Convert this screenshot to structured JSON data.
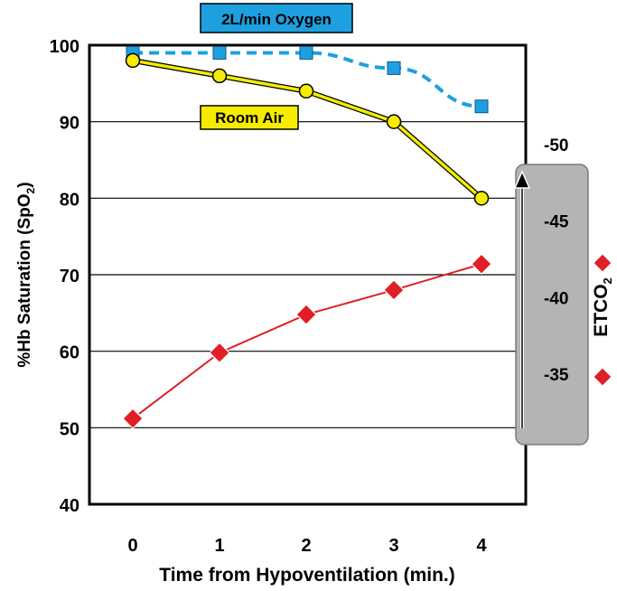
{
  "chart_data": {
    "type": "line",
    "x": [
      0,
      1,
      2,
      3,
      4
    ],
    "xlabel": "Time from Hypoventilation (min.)",
    "ylabel_main": "%Hb Saturation (SpO",
    "ylabel_sub": "2",
    "ylabel_close": ")",
    "ylim": [
      40,
      100
    ],
    "yticks": [
      40,
      50,
      60,
      70,
      80,
      90,
      100
    ],
    "xticks": [
      "0",
      "1",
      "2",
      "3",
      "4"
    ],
    "grid": true,
    "series": [
      {
        "name": "2L/min Oxygen",
        "values": [
          99,
          99,
          99,
          97,
          92
        ],
        "color": "#1ea0e0",
        "marker": "square",
        "style": "dashed"
      },
      {
        "name": "Room Air",
        "values": [
          98,
          96,
          94,
          90,
          80
        ],
        "color": "#f5ec00",
        "marker": "circle",
        "style": "solid"
      },
      {
        "name": "ETCO2",
        "axis": "secondary",
        "values": [
          32.1,
          36.4,
          38.9,
          40.5,
          42.2
        ],
        "color": "#e01e25",
        "marker": "diamond",
        "style": "solid"
      }
    ],
    "secondary_axis": {
      "ylabel_main": "ETCO",
      "ylabel_sub": "2",
      "ylim": [
        26.5,
        56.5
      ],
      "ticks": [
        35,
        40,
        45,
        50
      ],
      "tick_labels": [
        "-35",
        "-40",
        "-45",
        "-50"
      ]
    },
    "legend": {
      "oxygen_label": "2L/min Oxygen",
      "room_air_label": "Room Air"
    }
  }
}
